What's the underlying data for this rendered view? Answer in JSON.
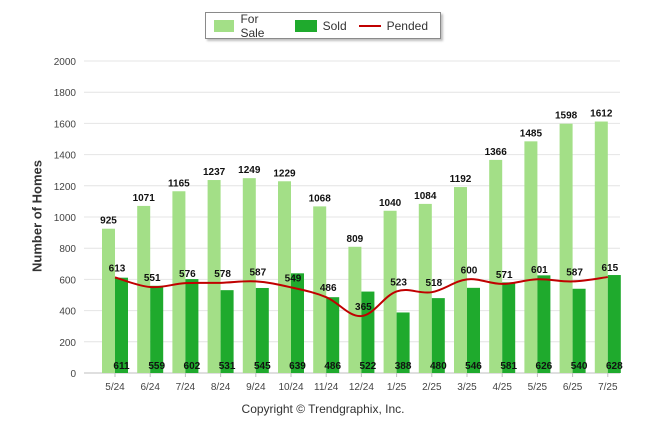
{
  "chart_data": {
    "type": "bar",
    "ylabel": "Number of Homes",
    "xlabel": "",
    "ylim": [
      0,
      2000
    ],
    "yticks": [
      0,
      200,
      400,
      600,
      800,
      1000,
      1200,
      1400,
      1600,
      1800,
      2000
    ],
    "categories": [
      "5/24",
      "6/24",
      "7/24",
      "8/24",
      "9/24",
      "10/24",
      "11/24",
      "12/24",
      "1/25",
      "2/25",
      "3/25",
      "4/25",
      "5/25",
      "6/25",
      "7/25"
    ],
    "series": [
      {
        "name": "For Sale",
        "kind": "bar",
        "color": "#a3df87",
        "values": [
          925,
          1071,
          1165,
          1237,
          1249,
          1229,
          1068,
          809,
          1040,
          1084,
          1192,
          1366,
          1485,
          1598,
          1612
        ]
      },
      {
        "name": "Sold",
        "kind": "bar",
        "color": "#1faa2d",
        "values": [
          611,
          559,
          602,
          531,
          545,
          639,
          486,
          522,
          388,
          480,
          546,
          581,
          626,
          540,
          628
        ]
      },
      {
        "name": "Pended",
        "kind": "line",
        "color": "#c00000",
        "values": [
          613,
          551,
          576,
          578,
          587,
          549,
          486,
          365,
          523,
          518,
          600,
          571,
          601,
          587,
          615
        ]
      }
    ],
    "grid": true,
    "legend_position": "top-center"
  },
  "footer": {
    "copyright": "Copyright © Trendgraphix, Inc."
  }
}
